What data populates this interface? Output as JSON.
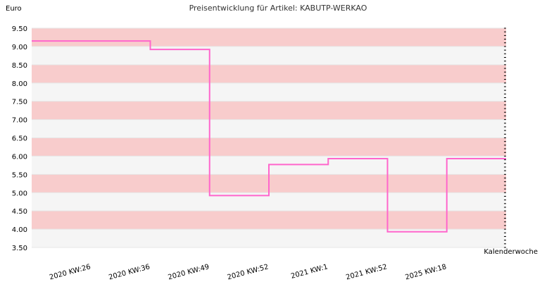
{
  "chart_data": {
    "type": "line",
    "step": true,
    "title": "Preisentwicklung für Artikel: KABUTP-WERKAO",
    "ylabel": "Euro",
    "xlabel": "Kalenderwoche",
    "ylim": [
      3.5,
      9.5
    ],
    "y_ticks": [
      "9.50",
      "9.00",
      "8.50",
      "8.00",
      "7.50",
      "7.00",
      "6.50",
      "6.00",
      "5.50",
      "5.00",
      "4.50",
      "4.00",
      "3.50"
    ],
    "x_ticks": [
      "2020 KW:26",
      "2020 KW:36",
      "2020 KW:49",
      "2020 KW:52",
      "2021 KW:1",
      "2021 KW:52",
      "2025 KW:18"
    ],
    "series": [
      {
        "color": "#ff66cc",
        "x": [
          "2020 KW:26",
          "2020 KW:36",
          "2020 KW:49",
          "2020 KW:52",
          "2021 KW:1",
          "2021 KW:52",
          "2025 KW:18"
        ],
        "values": [
          9.15,
          8.92,
          4.92,
          5.77,
          5.93,
          3.93,
          5.93
        ]
      }
    ],
    "band_colors": [
      "#f8cccc",
      "#f5f5f5"
    ],
    "grid": true,
    "legend": "none"
  }
}
